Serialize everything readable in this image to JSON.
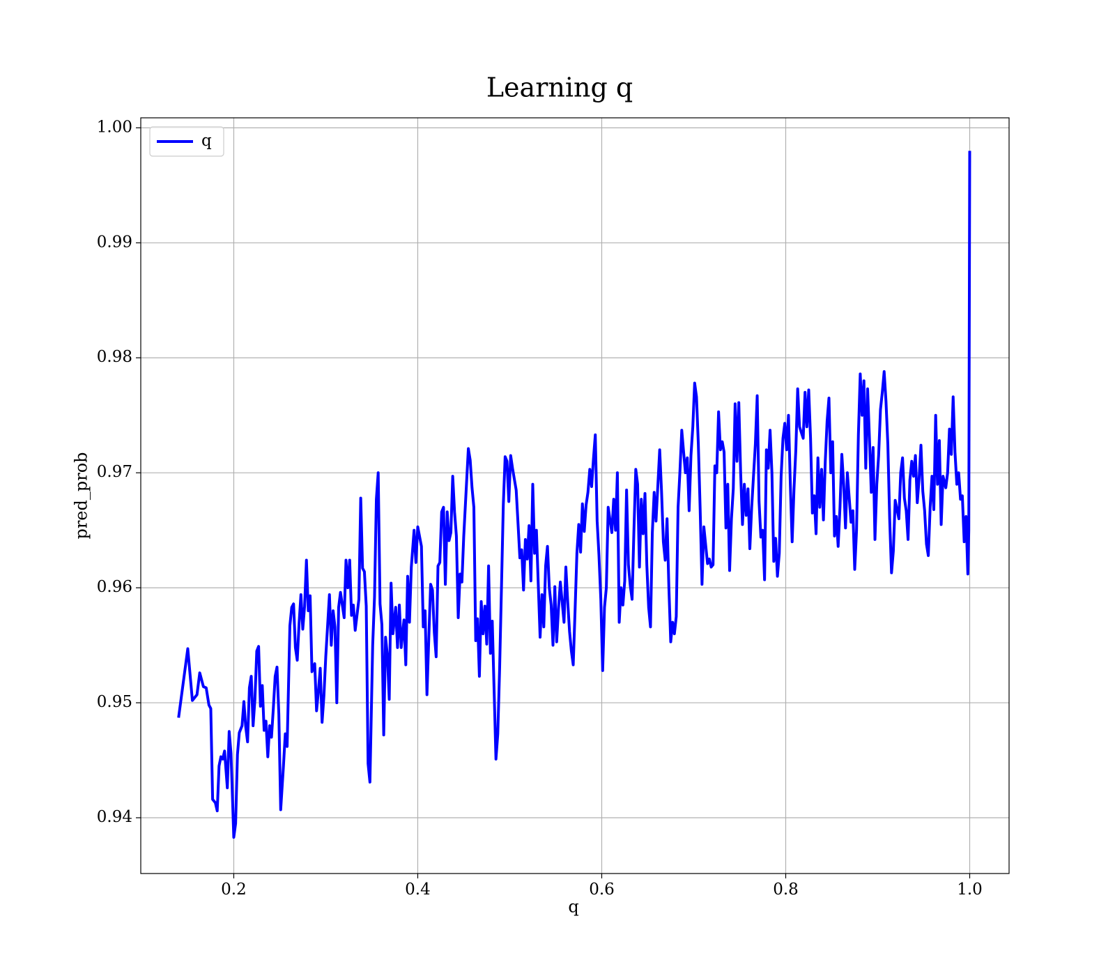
{
  "chart_data": {
    "type": "line",
    "title": "Learning q",
    "xlabel": "q",
    "ylabel": "pred_prob",
    "xlim": [
      0.0989,
      1.0428
    ],
    "ylim": [
      0.93515,
      1.00087
    ],
    "xticks": [
      0.2,
      0.4,
      0.6,
      0.8,
      {
        "value": 1.0,
        "label": "1.0"
      }
    ],
    "yticks": [
      0.94,
      0.95,
      0.96,
      0.97,
      0.98,
      0.99,
      {
        "value": 1.0,
        "label": "1.00"
      }
    ],
    "grid": true,
    "legend": "upper left",
    "x": [
      0.14,
      0.15,
      0.155,
      0.16,
      0.163,
      0.167,
      0.17,
      0.173,
      0.175,
      0.177,
      0.18,
      0.182,
      0.184,
      0.186,
      0.188,
      0.19,
      0.193,
      0.195,
      0.197,
      0.2,
      0.202,
      0.204,
      0.206,
      0.209,
      0.211,
      0.213,
      0.215,
      0.217,
      0.219,
      0.221,
      0.223,
      0.225,
      0.227,
      0.229,
      0.231,
      0.233,
      0.235,
      0.237,
      0.239,
      0.241,
      0.243,
      0.245,
      0.247,
      0.249,
      0.251,
      0.254,
      0.256,
      0.258,
      0.261,
      0.263,
      0.265,
      0.267,
      0.269,
      0.271,
      0.273,
      0.275,
      0.277,
      0.279,
      0.281,
      0.283,
      0.285,
      0.288,
      0.29,
      0.292,
      0.294,
      0.296,
      0.298,
      0.3,
      0.302,
      0.304,
      0.306,
      0.308,
      0.31,
      0.312,
      0.314,
      0.316,
      0.318,
      0.32,
      0.322,
      0.324,
      0.326,
      0.328,
      0.33,
      0.332,
      0.336,
      0.338,
      0.34,
      0.342,
      0.344,
      0.346,
      0.348,
      0.351,
      0.353,
      0.355,
      0.357,
      0.359,
      0.361,
      0.363,
      0.365,
      0.367,
      0.369,
      0.371,
      0.373,
      0.376,
      0.378,
      0.38,
      0.382,
      0.385,
      0.387,
      0.389,
      0.391,
      0.393,
      0.396,
      0.398,
      0.4,
      0.404,
      0.406,
      0.408,
      0.41,
      0.412,
      0.414,
      0.416,
      0.418,
      0.42,
      0.422,
      0.424,
      0.426,
      0.428,
      0.43,
      0.432,
      0.434,
      0.436,
      0.438,
      0.44,
      0.442,
      0.444,
      0.446,
      0.448,
      0.45,
      0.455,
      0.457,
      0.459,
      0.461,
      0.463,
      0.465,
      0.467,
      0.469,
      0.471,
      0.473,
      0.475,
      0.477,
      0.479,
      0.481,
      0.483,
      0.485,
      0.487,
      0.489,
      0.491,
      0.493,
      0.495,
      0.497,
      0.499,
      0.501,
      0.503,
      0.507,
      0.509,
      0.511,
      0.513,
      0.515,
      0.517,
      0.519,
      0.521,
      0.523,
      0.525,
      0.527,
      0.529,
      0.531,
      0.533,
      0.535,
      0.537,
      0.539,
      0.541,
      0.543,
      0.545,
      0.547,
      0.549,
      0.551,
      0.553,
      0.555,
      0.559,
      0.561,
      0.563,
      0.565,
      0.567,
      0.569,
      0.571,
      0.573,
      0.575,
      0.577,
      0.579,
      0.581,
      0.583,
      0.585,
      0.587,
      0.589,
      0.591,
      0.593,
      0.595,
      0.597,
      0.599,
      0.601,
      0.603,
      0.605,
      0.607,
      0.611,
      0.613,
      0.615,
      0.617,
      0.619,
      0.621,
      0.623,
      0.625,
      0.627,
      0.629,
      0.631,
      0.633,
      0.635,
      0.637,
      0.639,
      0.641,
      0.643,
      0.645,
      0.647,
      0.649,
      0.651,
      0.653,
      0.655,
      0.657,
      0.659,
      0.663,
      0.665,
      0.667,
      0.669,
      0.671,
      0.673,
      0.675,
      0.677,
      0.679,
      0.681,
      0.683,
      0.685,
      0.687,
      0.689,
      0.691,
      0.693,
      0.695,
      0.697,
      0.699,
      0.701,
      0.703,
      0.705,
      0.707,
      0.709,
      0.711,
      0.715,
      0.717,
      0.719,
      0.721,
      0.723,
      0.725,
      0.727,
      0.729,
      0.731,
      0.733,
      0.735,
      0.737,
      0.739,
      0.741,
      0.743,
      0.745,
      0.747,
      0.749,
      0.751,
      0.753,
      0.755,
      0.757,
      0.759,
      0.761,
      0.763,
      0.767,
      0.769,
      0.771,
      0.773,
      0.775,
      0.777,
      0.779,
      0.781,
      0.783,
      0.785,
      0.787,
      0.789,
      0.791,
      0.793,
      0.795,
      0.797,
      0.799,
      0.801,
      0.803,
      0.805,
      0.807,
      0.809,
      0.811,
      0.813,
      0.815,
      0.819,
      0.821,
      0.823,
      0.825,
      0.827,
      0.829,
      0.831,
      0.833,
      0.835,
      0.837,
      0.839,
      0.841,
      0.843,
      0.845,
      0.847,
      0.849,
      0.851,
      0.853,
      0.855,
      0.857,
      0.859,
      0.861,
      0.863,
      0.865,
      0.867,
      0.871,
      0.873,
      0.875,
      0.877,
      0.879,
      0.881,
      0.883,
      0.885,
      0.887,
      0.889,
      0.891,
      0.893,
      0.895,
      0.897,
      0.899,
      0.901,
      0.903,
      0.905,
      0.907,
      0.909,
      0.911,
      0.913,
      0.915,
      0.917,
      0.919,
      0.923,
      0.925,
      0.927,
      0.929,
      0.931,
      0.933,
      0.935,
      0.937,
      0.939,
      0.941,
      0.943,
      0.945,
      0.947,
      0.949,
      0.951,
      0.953,
      0.955,
      0.957,
      0.959,
      0.961,
      0.963,
      0.965,
      0.967,
      0.969,
      0.971,
      0.974,
      0.976,
      0.978,
      0.98,
      0.982,
      0.984,
      0.986,
      0.988,
      0.99,
      0.992,
      0.994,
      0.996,
      0.998,
      0.999,
      1.0
    ],
    "series": [
      {
        "name": "q",
        "color": "#0000ff",
        "values": [
          0.9487,
          0.9547,
          0.9502,
          0.9507,
          0.9526,
          0.9514,
          0.9513,
          0.9498,
          0.9495,
          0.9416,
          0.9413,
          0.9406,
          0.9445,
          0.9453,
          0.9451,
          0.9458,
          0.9426,
          0.9475,
          0.9456,
          0.9383,
          0.9395,
          0.9455,
          0.9474,
          0.948,
          0.9501,
          0.9479,
          0.9466,
          0.9513,
          0.9523,
          0.948,
          0.9503,
          0.9545,
          0.9549,
          0.9497,
          0.9515,
          0.9476,
          0.9484,
          0.9453,
          0.948,
          0.947,
          0.9495,
          0.9523,
          0.9531,
          0.949,
          0.9407,
          0.9445,
          0.9473,
          0.9462,
          0.9567,
          0.9583,
          0.9586,
          0.9548,
          0.9537,
          0.9569,
          0.9594,
          0.9564,
          0.9584,
          0.9624,
          0.958,
          0.9593,
          0.9527,
          0.9534,
          0.9493,
          0.951,
          0.953,
          0.9483,
          0.9506,
          0.954,
          0.9567,
          0.9594,
          0.955,
          0.958,
          0.9566,
          0.95,
          0.9583,
          0.9596,
          0.9585,
          0.9574,
          0.9624,
          0.96,
          0.9624,
          0.9576,
          0.9585,
          0.9563,
          0.959,
          0.9678,
          0.9617,
          0.9614,
          0.9584,
          0.9447,
          0.9431,
          0.955,
          0.9592,
          0.9677,
          0.97,
          0.9586,
          0.9568,
          0.9472,
          0.9557,
          0.9541,
          0.9503,
          0.9604,
          0.956,
          0.9583,
          0.9548,
          0.9585,
          0.9548,
          0.9572,
          0.9533,
          0.961,
          0.957,
          0.9618,
          0.965,
          0.9622,
          0.9653,
          0.9636,
          0.9566,
          0.958,
          0.9507,
          0.9556,
          0.9603,
          0.9598,
          0.9561,
          0.954,
          0.9619,
          0.9622,
          0.9666,
          0.967,
          0.9603,
          0.9666,
          0.9641,
          0.9648,
          0.9697,
          0.9666,
          0.9645,
          0.9574,
          0.9612,
          0.9605,
          0.9645,
          0.9721,
          0.9711,
          0.9687,
          0.967,
          0.9554,
          0.9573,
          0.9523,
          0.9588,
          0.956,
          0.9584,
          0.9551,
          0.9619,
          0.9543,
          0.9571,
          0.9511,
          0.9451,
          0.9473,
          0.953,
          0.96,
          0.9672,
          0.9714,
          0.971,
          0.9675,
          0.9715,
          0.9704,
          0.9685,
          0.9656,
          0.9626,
          0.9633,
          0.9598,
          0.9642,
          0.9625,
          0.9654,
          0.9606,
          0.969,
          0.963,
          0.965,
          0.9603,
          0.9557,
          0.9594,
          0.9566,
          0.9619,
          0.9636,
          0.96,
          0.9585,
          0.955,
          0.9601,
          0.9553,
          0.9582,
          0.9605,
          0.957,
          0.9618,
          0.9588,
          0.9562,
          0.9545,
          0.9533,
          0.958,
          0.963,
          0.9655,
          0.9631,
          0.9673,
          0.9649,
          0.9672,
          0.9683,
          0.9703,
          0.9688,
          0.9712,
          0.9733,
          0.9658,
          0.9628,
          0.959,
          0.9528,
          0.9583,
          0.96,
          0.967,
          0.9648,
          0.9677,
          0.965,
          0.97,
          0.957,
          0.96,
          0.9585,
          0.9606,
          0.9685,
          0.962,
          0.9602,
          0.959,
          0.965,
          0.9703,
          0.969,
          0.9618,
          0.9677,
          0.9647,
          0.9682,
          0.962,
          0.9583,
          0.9566,
          0.9648,
          0.9683,
          0.9658,
          0.972,
          0.9684,
          0.964,
          0.9624,
          0.966,
          0.96,
          0.9553,
          0.957,
          0.956,
          0.9575,
          0.967,
          0.9701,
          0.9737,
          0.9718,
          0.97,
          0.9713,
          0.9667,
          0.9715,
          0.974,
          0.9778,
          0.9766,
          0.9725,
          0.9668,
          0.9603,
          0.9653,
          0.9621,
          0.9625,
          0.9618,
          0.962,
          0.9706,
          0.97,
          0.9753,
          0.972,
          0.9727,
          0.9718,
          0.9652,
          0.969,
          0.9615,
          0.966,
          0.9686,
          0.976,
          0.971,
          0.9761,
          0.97,
          0.9655,
          0.969,
          0.9663,
          0.9686,
          0.9634,
          0.967,
          0.9725,
          0.9767,
          0.9675,
          0.9644,
          0.965,
          0.9607,
          0.972,
          0.9704,
          0.9737,
          0.97,
          0.9623,
          0.9643,
          0.961,
          0.963,
          0.9697,
          0.973,
          0.9743,
          0.972,
          0.975,
          0.969,
          0.964,
          0.9686,
          0.972,
          0.9773,
          0.974,
          0.973,
          0.977,
          0.974,
          0.9772,
          0.973,
          0.9665,
          0.968,
          0.9647,
          0.9713,
          0.967,
          0.9703,
          0.9659,
          0.971,
          0.9745,
          0.9765,
          0.97,
          0.9727,
          0.9645,
          0.9662,
          0.9636,
          0.967,
          0.9716,
          0.969,
          0.9652,
          0.97,
          0.9657,
          0.9667,
          0.9616,
          0.965,
          0.9733,
          0.9786,
          0.975,
          0.978,
          0.9704,
          0.9773,
          0.973,
          0.9683,
          0.9722,
          0.9642,
          0.969,
          0.9715,
          0.9755,
          0.977,
          0.9788,
          0.9762,
          0.9725,
          0.966,
          0.9613,
          0.9632,
          0.9676,
          0.966,
          0.97,
          0.9713,
          0.9678,
          0.9667,
          0.9642,
          0.9694,
          0.971,
          0.9697,
          0.9715,
          0.9674,
          0.9695,
          0.9724,
          0.9684,
          0.9667,
          0.9638,
          0.9628,
          0.967,
          0.9697,
          0.9668,
          0.975,
          0.969,
          0.9728,
          0.9655,
          0.9697,
          0.9687,
          0.97,
          0.9738,
          0.9716,
          0.9766,
          0.9718,
          0.969,
          0.97,
          0.9677,
          0.968,
          0.964,
          0.9662,
          0.9612,
          0.965,
          0.998
        ]
      }
    ]
  }
}
